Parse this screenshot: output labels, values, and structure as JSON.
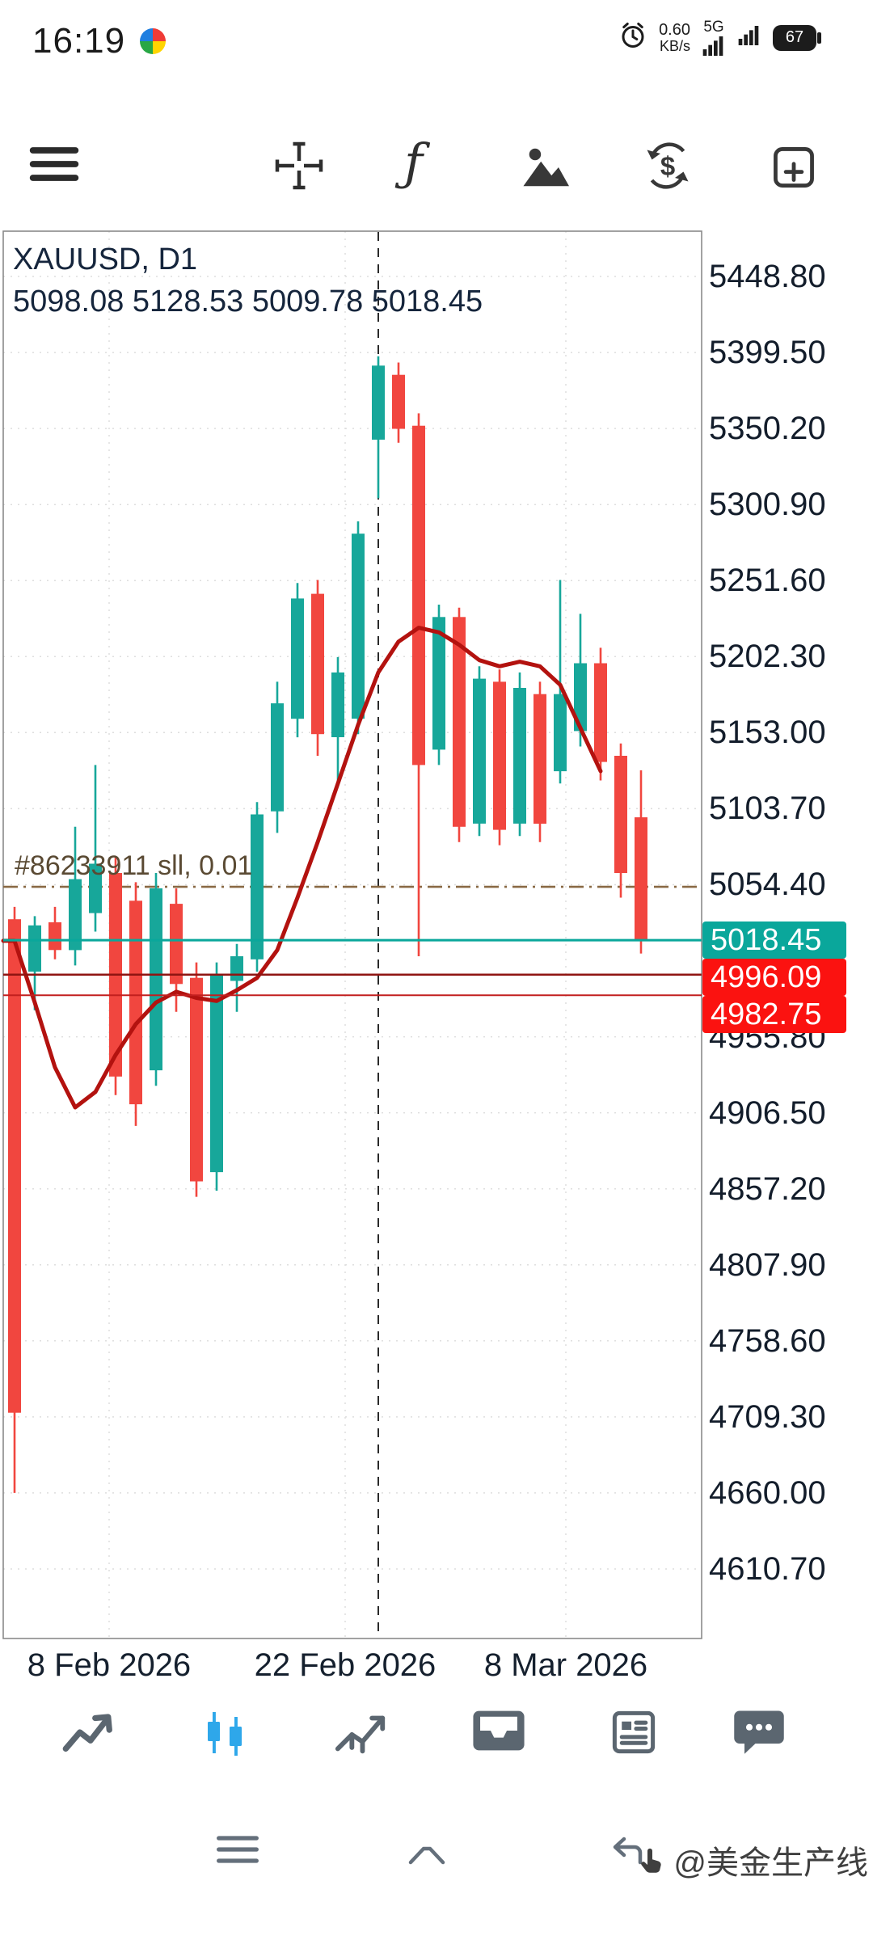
{
  "status_bar": {
    "time": "16:19",
    "net_speed_value": "0.60",
    "net_speed_unit": "KB/s",
    "network_type": "5G",
    "battery_level": "67"
  },
  "toolbar": {
    "indicator_glyph": "ƒ"
  },
  "chart": {
    "symbol_label": "XAUUSD, D1",
    "ohlc_label": "5098.08 5128.53 5009.78 5018.45",
    "order_label": "#86233911 sll, 0.01"
  },
  "chart_data": {
    "type": "candlestick",
    "symbol": "XAUUSD",
    "timeframe": "D1",
    "ohlc": {
      "open": 5098.08,
      "high": 5128.53,
      "low": 5009.78,
      "close": 5018.45
    },
    "y_axis_labels": [
      "5448.80",
      "5399.50",
      "5350.20",
      "5300.90",
      "5251.60",
      "5202.30",
      "5153.00",
      "5103.70",
      "5054.40",
      "4955.80",
      "4906.50",
      "4857.20",
      "4807.90",
      "4758.60",
      "4709.30",
      "4660.00",
      "4610.70"
    ],
    "x_axis_labels": [
      "8 Feb 2026",
      "22 Feb 2026",
      "8 Mar 2026"
    ],
    "price_badges": [
      {
        "text": "5018.45",
        "bg": "#0aa79b"
      },
      {
        "text": "4996.09",
        "bg": "#fb1210"
      },
      {
        "text": "4982.75",
        "bg": "#fb1210"
      }
    ],
    "price_lines": [
      {
        "price": 5018.45,
        "color": "#0aa79b",
        "width": 3,
        "role": "current-price"
      },
      {
        "price": 4996.09,
        "color": "#8f1512",
        "width": 2.5,
        "role": "stop-level"
      },
      {
        "price": 4982.75,
        "color": "#c21f1f",
        "width": 2,
        "role": "stop-level"
      }
    ],
    "order_line": {
      "price": 5053.0,
      "style": "dash-dot",
      "color": "#8a6a45",
      "label": "#86233911 sll, 0.01"
    },
    "vline_index": 18,
    "colors": {
      "up": "#17a79a",
      "down": "#f1463f"
    },
    "candles": [
      [
        5032,
        5040,
        4660,
        4712
      ],
      [
        4998,
        5034,
        4973,
        5028
      ],
      [
        5030,
        5040,
        5006,
        5012
      ],
      [
        5012,
        5092,
        5002,
        5058
      ],
      [
        5036,
        5132,
        5024,
        5068
      ],
      [
        5062,
        5072,
        4918,
        4930
      ],
      [
        5044,
        5056,
        4898,
        4912
      ],
      [
        4934,
        5062,
        4924,
        5052
      ],
      [
        5042,
        5052,
        4972,
        4990
      ],
      [
        4994,
        5004,
        4852,
        4862
      ],
      [
        4868,
        5004,
        4856,
        4996
      ],
      [
        4992,
        5016,
        4972,
        5008
      ],
      [
        5006,
        5108,
        4998,
        5100
      ],
      [
        5102,
        5186,
        5088,
        5172
      ],
      [
        5162,
        5250,
        5150,
        5240
      ],
      [
        5243,
        5252,
        5138,
        5152
      ],
      [
        5150,
        5202,
        5118,
        5192
      ],
      [
        5162,
        5290,
        5152,
        5282
      ],
      [
        5343,
        5397,
        5305,
        5391
      ],
      [
        5385,
        5393,
        5341,
        5350
      ],
      [
        5352,
        5360,
        5008,
        5132
      ],
      [
        5142,
        5236,
        5132,
        5228
      ],
      [
        5228,
        5234,
        5082,
        5092
      ],
      [
        5094,
        5196,
        5086,
        5188
      ],
      [
        5186,
        5194,
        5080,
        5090
      ],
      [
        5094,
        5192,
        5086,
        5182
      ],
      [
        5178,
        5186,
        5082,
        5094
      ],
      [
        5128,
        5252,
        5120,
        5178
      ],
      [
        5154,
        5230,
        5144,
        5198
      ],
      [
        5198,
        5208,
        5122,
        5134
      ],
      [
        5138,
        5146,
        5046,
        5062
      ],
      [
        5098.08,
        5128.53,
        5009.78,
        5018.45
      ]
    ],
    "ma_line": {
      "color": "#b3120f",
      "values": [
        5018,
        4978,
        4936,
        4910,
        4920,
        4944,
        4964,
        4978,
        4985,
        4981,
        4979,
        4986,
        4994,
        5012,
        5046,
        5082,
        5120,
        5158,
        5192,
        5212,
        5221,
        5218,
        5210,
        5200,
        5196,
        5199,
        5196,
        5184,
        5156,
        5128
      ]
    }
  },
  "watermark": {
    "text": "@美金生产线"
  }
}
